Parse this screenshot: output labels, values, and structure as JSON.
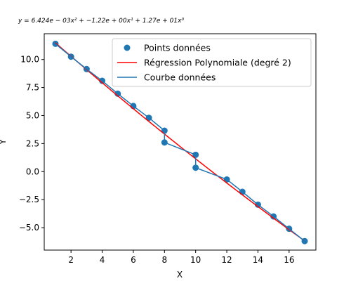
{
  "chart_data": {
    "type": "scatter",
    "title": "y = 6.424e − 03x² + −1.22e + 00x¹ + 1.27e + 01x⁰",
    "xlabel": "X",
    "ylabel": "Y",
    "xlim": [
      0.28,
      17.72
    ],
    "ylim": [
      -7.0,
      12.3
    ],
    "xticks": [
      2,
      4,
      6,
      8,
      10,
      12,
      14,
      16
    ],
    "yticks": [
      -5.0,
      -2.5,
      0.0,
      2.5,
      5.0,
      7.5,
      10.0
    ],
    "xtick_labels": [
      "2",
      "4",
      "6",
      "8",
      "10",
      "12",
      "14",
      "16"
    ],
    "ytick_labels": [
      "−5.0",
      "−2.5",
      "0.0",
      "2.5",
      "5.0",
      "7.5",
      "10.0"
    ],
    "legend_position": "top-right",
    "series": [
      {
        "name": "Points données",
        "kind": "scatter",
        "color": "#1f77b4",
        "points": [
          [
            1,
            11.4
          ],
          [
            2,
            10.25
          ],
          [
            3,
            9.15
          ],
          [
            4,
            8.1
          ],
          [
            5,
            6.95
          ],
          [
            6,
            5.85
          ],
          [
            7,
            4.8
          ],
          [
            8,
            3.65
          ],
          [
            8,
            2.6
          ],
          [
            10,
            1.5
          ],
          [
            10,
            0.35
          ],
          [
            12,
            -0.7
          ],
          [
            13,
            -1.8
          ],
          [
            14,
            -2.95
          ],
          [
            15,
            -4.0
          ],
          [
            16,
            -5.1
          ],
          [
            17,
            -6.2
          ]
        ]
      },
      {
        "name": "Régression Polynomiale (degré 2)",
        "kind": "poly",
        "color": "#ff0000",
        "coefficients": [
          0.006424,
          -1.22,
          12.7
        ],
        "x_range": [
          1,
          17
        ]
      },
      {
        "name": "Courbe données",
        "kind": "line",
        "color": "#1f77b4",
        "points": [
          [
            1,
            11.4
          ],
          [
            2,
            10.25
          ],
          [
            3,
            9.15
          ],
          [
            4,
            8.1
          ],
          [
            5,
            6.95
          ],
          [
            6,
            5.85
          ],
          [
            7,
            4.8
          ],
          [
            8,
            3.65
          ],
          [
            8,
            2.6
          ],
          [
            10,
            1.5
          ],
          [
            10,
            0.35
          ],
          [
            12,
            -0.7
          ],
          [
            13,
            -1.8
          ],
          [
            14,
            -2.95
          ],
          [
            15,
            -4.0
          ],
          [
            16,
            -5.1
          ],
          [
            17,
            -6.2
          ]
        ]
      }
    ]
  }
}
